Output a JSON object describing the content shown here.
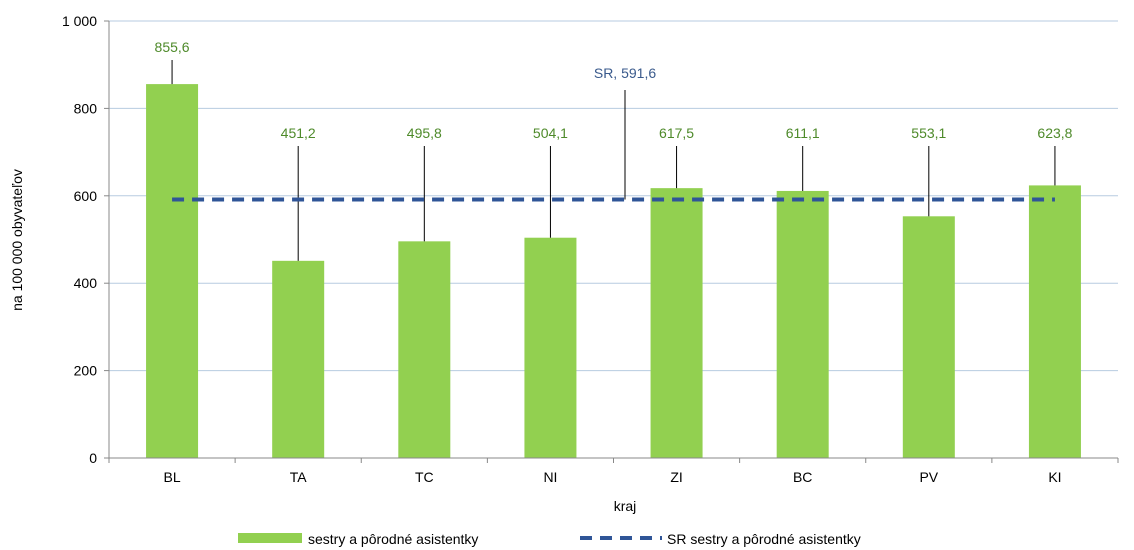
{
  "chart_data": {
    "type": "bar",
    "categories": [
      "BL",
      "TA",
      "TC",
      "NI",
      "ZI",
      "BC",
      "PV",
      "KI"
    ],
    "series": [
      {
        "name": "sestry a pôrodné asistentky",
        "values": [
          855.6,
          451.2,
          495.8,
          504.1,
          617.5,
          611.1,
          553.1,
          623.8
        ]
      }
    ],
    "data_labels": [
      "855,6",
      "451,2",
      "495,8",
      "504,1",
      "617,5",
      "611,1",
      "553,1",
      "623,8"
    ],
    "reference_line": {
      "name": "SR sestry a pôrodné asistentky",
      "value": 591.6,
      "label": "SR, 591,6",
      "style": "dashed"
    },
    "xlabel": "kraj",
    "ylabel": "na 100 000 obyvateľov",
    "ylim": [
      0,
      1000
    ],
    "y_ticks": [
      0,
      200,
      400,
      600,
      800,
      1000
    ],
    "y_tick_labels": [
      "0",
      "200",
      "400",
      "600",
      "800",
      "1 000"
    ],
    "grid": true,
    "legend_position": "bottom",
    "colors": {
      "bar": "#92d050",
      "reference": "#2f5597",
      "data_label": "#4e8a2a",
      "reference_label": "#3a5a8c",
      "grid": "#b7cbe0"
    }
  }
}
